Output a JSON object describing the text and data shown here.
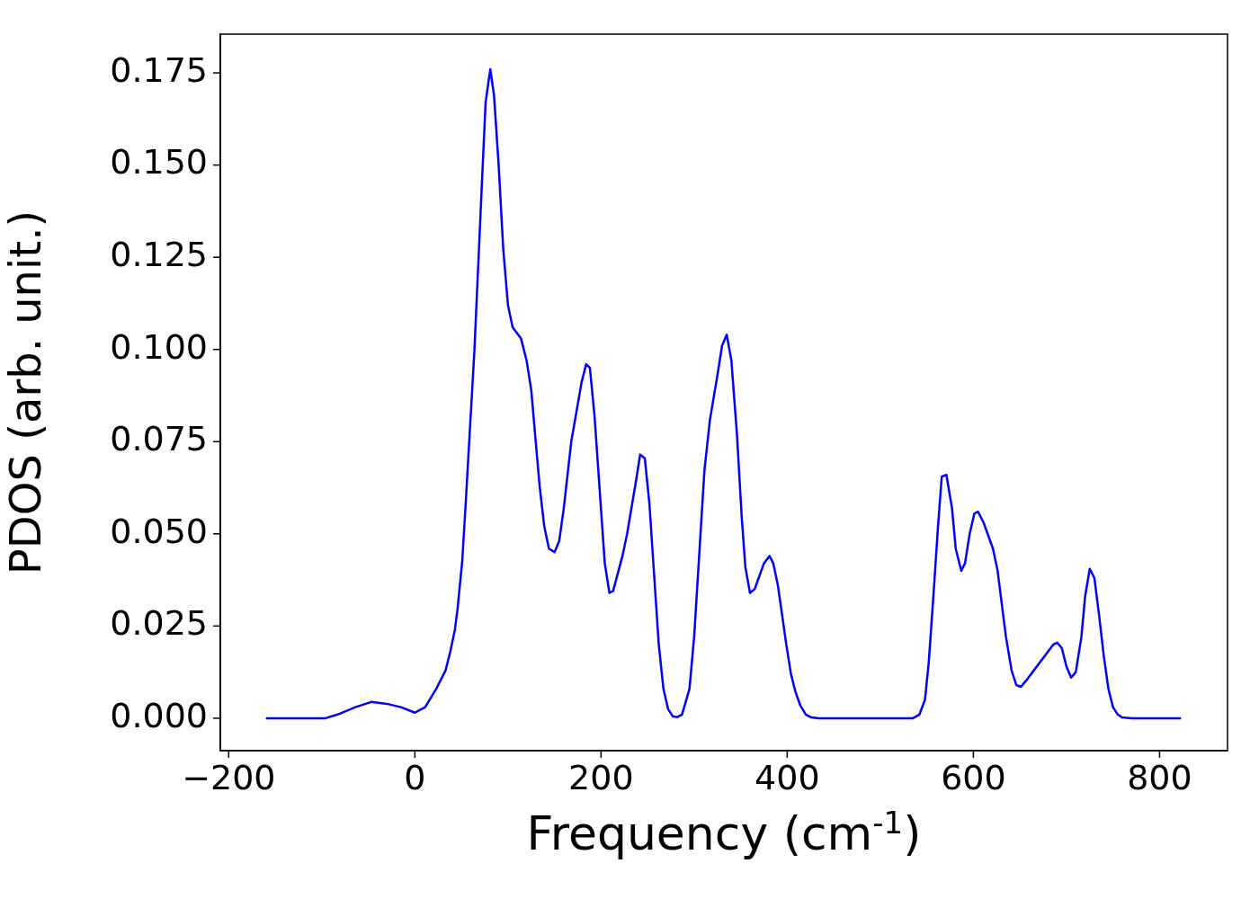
{
  "chart_data": {
    "type": "line",
    "xlabel": "Frequency (cm$^{-1}$)",
    "ylabel": "PDOS (arb. unit.)",
    "xlim": [
      -209,
      873
    ],
    "ylim": [
      -0.0088,
      0.1855
    ],
    "xticks": [
      {
        "value": -200,
        "label": "−200"
      },
      0,
      200,
      400,
      600,
      800
    ],
    "yticks": [
      {
        "value": 0,
        "label": "0.000"
      },
      {
        "value": 0.025,
        "label": "0.025"
      },
      {
        "value": 0.05,
        "label": "0.050"
      },
      {
        "value": 0.075,
        "label": "0.075"
      },
      {
        "value": 0.1,
        "label": "0.100"
      },
      {
        "value": 0.125,
        "label": "0.125"
      },
      {
        "value": 0.15,
        "label": "0.150"
      },
      {
        "value": 0.175,
        "label": "0.175"
      }
    ],
    "grid": false,
    "legend": false,
    "marker": "none",
    "line_style": "solid",
    "series": [
      {
        "color": "#0000ff",
        "x": [
          -160,
          -96,
          -83,
          -64,
          -47,
          -30,
          -15,
          0,
          11,
          23,
          33,
          38,
          43,
          46,
          51,
          55,
          64,
          72,
          76,
          81,
          85,
          90,
          95,
          100,
          105,
          114,
          120,
          125,
          134,
          139,
          144,
          150,
          155,
          160,
          168,
          179,
          184,
          188,
          193,
          204,
          209,
          213,
          223,
          228,
          238,
          242,
          247,
          252,
          262,
          267,
          272,
          277,
          282,
          287,
          295,
          300,
          311,
          317,
          325,
          330,
          335,
          340,
          346,
          351,
          355,
          360,
          365,
          375,
          381,
          385,
          390,
          399,
          404,
          409,
          414,
          420,
          426,
          434,
          535,
          542,
          548,
          552,
          557,
          562,
          566,
          571,
          577,
          581,
          587,
          591,
          596,
          601,
          605,
          611,
          621,
          626,
          635,
          641,
          646,
          651,
          656,
          671,
          686,
          690,
          695,
          700,
          705,
          710,
          716,
          720,
          725,
          730,
          735,
          740,
          745,
          750,
          755,
          760,
          770,
          823
        ],
        "values": [
          0,
          0,
          0.001,
          0.003,
          0.0044,
          0.0039,
          0.003,
          0.0015,
          0.003,
          0.008,
          0.013,
          0.018,
          0.024,
          0.03,
          0.043,
          0.06,
          0.1,
          0.145,
          0.167,
          0.176,
          0.169,
          0.15,
          0.127,
          0.112,
          0.106,
          0.103,
          0.097,
          0.089,
          0.063,
          0.052,
          0.046,
          0.045,
          0.048,
          0.057,
          0.075,
          0.091,
          0.096,
          0.095,
          0.082,
          0.042,
          0.034,
          0.0345,
          0.044,
          0.05,
          0.065,
          0.0715,
          0.0705,
          0.058,
          0.02,
          0.008,
          0.0025,
          0.0005,
          0.0003,
          0.001,
          0.008,
          0.022,
          0.067,
          0.081,
          0.093,
          0.101,
          0.104,
          0.097,
          0.077,
          0.055,
          0.041,
          0.034,
          0.035,
          0.042,
          0.044,
          0.042,
          0.036,
          0.02,
          0.012,
          0.007,
          0.0035,
          0.001,
          0.0002,
          0,
          0,
          0.001,
          0.005,
          0.015,
          0.033,
          0.052,
          0.0655,
          0.066,
          0.057,
          0.046,
          0.04,
          0.042,
          0.05,
          0.0555,
          0.056,
          0.053,
          0.046,
          0.04,
          0.022,
          0.013,
          0.009,
          0.0085,
          0.01,
          0.015,
          0.02,
          0.0205,
          0.019,
          0.014,
          0.011,
          0.0125,
          0.022,
          0.033,
          0.0405,
          0.038,
          0.028,
          0.017,
          0.008,
          0.003,
          0.001,
          0.0002,
          0,
          0
        ]
      }
    ]
  }
}
